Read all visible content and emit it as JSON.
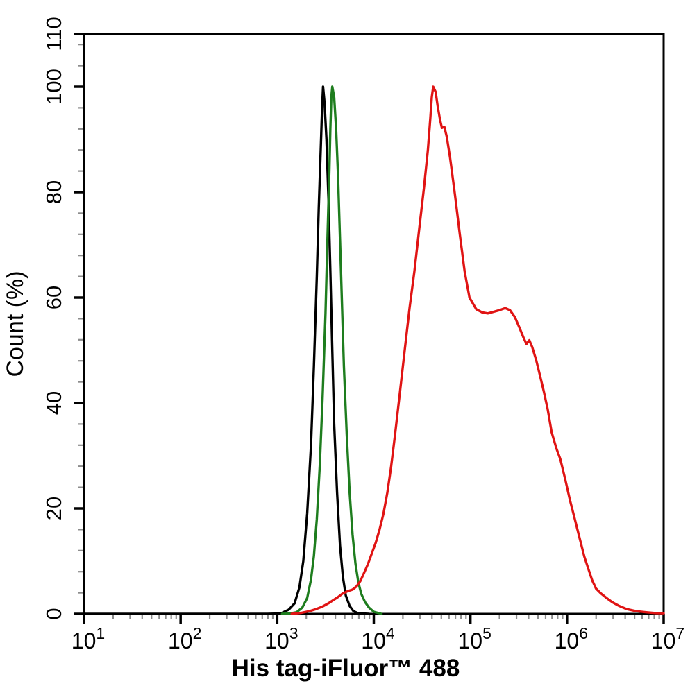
{
  "chart_data": {
    "type": "line",
    "title": "",
    "xlabel": "His tag-iFluor™ 488",
    "ylabel": "Count  (%)",
    "x_scale": "log10",
    "x_range_exponents": [
      1,
      7
    ],
    "ylim": [
      0,
      110
    ],
    "y_major_ticks": [
      0,
      20,
      40,
      60,
      80,
      100,
      110
    ],
    "y_minor_step": 4,
    "x_major_tick_exponents": [
      1,
      2,
      3,
      4,
      5,
      6,
      7
    ],
    "x_tick_base": "10",
    "grid": "off",
    "legend": "none",
    "frame_color": "#000000",
    "minor_tick_color": "#8c8c8c",
    "series": [
      {
        "name": "black",
        "color": "#000000",
        "points_log10x_pct": [
          [
            1.0,
            0
          ],
          [
            2.9,
            0
          ],
          [
            3.0,
            0.05
          ],
          [
            3.05,
            0.2
          ],
          [
            3.12,
            0.8
          ],
          [
            3.18,
            2
          ],
          [
            3.23,
            5
          ],
          [
            3.27,
            10
          ],
          [
            3.31,
            19
          ],
          [
            3.35,
            32
          ],
          [
            3.38,
            47
          ],
          [
            3.41,
            64
          ],
          [
            3.43,
            77
          ],
          [
            3.45,
            88
          ],
          [
            3.465,
            96
          ],
          [
            3.475,
            100
          ],
          [
            3.49,
            97
          ],
          [
            3.51,
            90
          ],
          [
            3.53,
            79
          ],
          [
            3.55,
            65
          ],
          [
            3.57,
            50
          ],
          [
            3.59,
            36
          ],
          [
            3.62,
            23
          ],
          [
            3.65,
            13
          ],
          [
            3.68,
            7
          ],
          [
            3.71,
            3.5
          ],
          [
            3.75,
            1.5
          ],
          [
            3.79,
            0.5
          ],
          [
            3.84,
            0.1
          ],
          [
            3.95,
            0
          ]
        ]
      },
      {
        "name": "green",
        "color": "#1e7d1e",
        "points_log10x_pct": [
          [
            3.05,
            0
          ],
          [
            3.14,
            0.1
          ],
          [
            3.2,
            0.3
          ],
          [
            3.26,
            1.2
          ],
          [
            3.31,
            3
          ],
          [
            3.35,
            6.5
          ],
          [
            3.38,
            11
          ],
          [
            3.41,
            18
          ],
          [
            3.44,
            28
          ],
          [
            3.47,
            41
          ],
          [
            3.5,
            57
          ],
          [
            3.52,
            71
          ],
          [
            3.54,
            84
          ],
          [
            3.55,
            92
          ],
          [
            3.56,
            98
          ],
          [
            3.57,
            100
          ],
          [
            3.59,
            98
          ],
          [
            3.61,
            92
          ],
          [
            3.63,
            83
          ],
          [
            3.65,
            71
          ],
          [
            3.67,
            59
          ],
          [
            3.69,
            47
          ],
          [
            3.72,
            34
          ],
          [
            3.75,
            23
          ],
          [
            3.78,
            15
          ],
          [
            3.81,
            9.5
          ],
          [
            3.84,
            6
          ],
          [
            3.87,
            3.8
          ],
          [
            3.91,
            2.2
          ],
          [
            3.95,
            1.2
          ],
          [
            4.0,
            0.4
          ],
          [
            4.08,
            0
          ]
        ]
      },
      {
        "name": "red",
        "color": "#e01414",
        "points_log10x_pct": [
          [
            3.15,
            0
          ],
          [
            3.25,
            0.2
          ],
          [
            3.33,
            0.5
          ],
          [
            3.4,
            0.9
          ],
          [
            3.47,
            1.4
          ],
          [
            3.53,
            2.0
          ],
          [
            3.58,
            2.6
          ],
          [
            3.63,
            3.2
          ],
          [
            3.68,
            3.9
          ],
          [
            3.73,
            4.3
          ],
          [
            3.78,
            4.6
          ],
          [
            3.82,
            5.2
          ],
          [
            3.86,
            6.2
          ],
          [
            3.9,
            7.8
          ],
          [
            3.94,
            9.5
          ],
          [
            3.98,
            11.5
          ],
          [
            4.02,
            13.5
          ],
          [
            4.06,
            16
          ],
          [
            4.1,
            19
          ],
          [
            4.14,
            23
          ],
          [
            4.18,
            28
          ],
          [
            4.22,
            34
          ],
          [
            4.27,
            42
          ],
          [
            4.32,
            50
          ],
          [
            4.37,
            58
          ],
          [
            4.42,
            65
          ],
          [
            4.47,
            73
          ],
          [
            4.52,
            81
          ],
          [
            4.56,
            88
          ],
          [
            4.585,
            94
          ],
          [
            4.6,
            98
          ],
          [
            4.615,
            100
          ],
          [
            4.64,
            99
          ],
          [
            4.66,
            96.5
          ],
          [
            4.685,
            93.8
          ],
          [
            4.705,
            92.2
          ],
          [
            4.73,
            92.4
          ],
          [
            4.755,
            90.5
          ],
          [
            4.79,
            86.5
          ],
          [
            4.84,
            79.5
          ],
          [
            4.89,
            72
          ],
          [
            4.94,
            65
          ],
          [
            4.99,
            60
          ],
          [
            5.06,
            57.8
          ],
          [
            5.12,
            57.2
          ],
          [
            5.18,
            57.0
          ],
          [
            5.24,
            57.3
          ],
          [
            5.3,
            57.6
          ],
          [
            5.36,
            58.0
          ],
          [
            5.41,
            57.6
          ],
          [
            5.46,
            56.3
          ],
          [
            5.51,
            54.2
          ],
          [
            5.55,
            52.4
          ],
          [
            5.58,
            51.2
          ],
          [
            5.61,
            51.9
          ],
          [
            5.64,
            50.6
          ],
          [
            5.68,
            48.2
          ],
          [
            5.72,
            45.2
          ],
          [
            5.76,
            42.2
          ],
          [
            5.8,
            38.8
          ],
          [
            5.84,
            34.5
          ],
          [
            5.89,
            31.4
          ],
          [
            5.93,
            29.4
          ],
          [
            5.98,
            25.6
          ],
          [
            6.03,
            21.6
          ],
          [
            6.08,
            18
          ],
          [
            6.13,
            14.4
          ],
          [
            6.18,
            10.8
          ],
          [
            6.22,
            8.6
          ],
          [
            6.26,
            6.4
          ],
          [
            6.3,
            4.8
          ],
          [
            6.35,
            3.9
          ],
          [
            6.41,
            3.0
          ],
          [
            6.47,
            2.2
          ],
          [
            6.54,
            1.5
          ],
          [
            6.62,
            0.9
          ],
          [
            6.72,
            0.5
          ],
          [
            6.82,
            0.3
          ],
          [
            6.92,
            0.15
          ],
          [
            7.0,
            0.1
          ]
        ]
      }
    ]
  }
}
